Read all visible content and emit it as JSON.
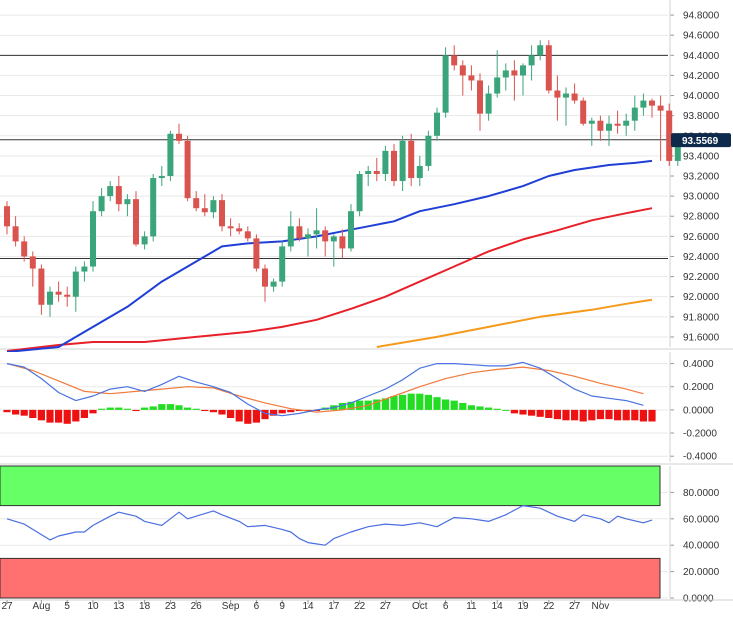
{
  "colors": {
    "background": "#ffffff",
    "grid": "#e9e9e9",
    "axis": "#d0d0d0",
    "candle_up": "#3aa57a",
    "candle_down": "#d9534f",
    "sma_fast": "#1f3fd6",
    "sma_mid": "#e8202a",
    "sma_slow": "#f59a1a",
    "macd_line": "#4a73e0",
    "signal_line": "#f07a3a",
    "hist_pos": "#22dd22",
    "hist_neg": "#ee1111",
    "rsi_line": "#4a6ee0",
    "overbought_zone": "#66ff66",
    "oversold_zone": "#ff7070",
    "last_price_tag": "#0e2a4a"
  },
  "x_axis": {
    "labels": [
      {
        "text": "27",
        "index": 0
      },
      {
        "text": "Aug",
        "index": 4
      },
      {
        "text": "5",
        "index": 7
      },
      {
        "text": "10",
        "index": 10
      },
      {
        "text": "13",
        "index": 13
      },
      {
        "text": "18",
        "index": 16
      },
      {
        "text": "23",
        "index": 19
      },
      {
        "text": "26",
        "index": 22
      },
      {
        "text": "Sep",
        "index": 26
      },
      {
        "text": "6",
        "index": 29
      },
      {
        "text": "9",
        "index": 32
      },
      {
        "text": "14",
        "index": 35
      },
      {
        "text": "17",
        "index": 38
      },
      {
        "text": "22",
        "index": 41
      },
      {
        "text": "27",
        "index": 44
      },
      {
        "text": "Oct",
        "index": 48
      },
      {
        "text": "6",
        "index": 51
      },
      {
        "text": "11",
        "index": 54
      },
      {
        "text": "14",
        "index": 57
      },
      {
        "text": "19",
        "index": 60
      },
      {
        "text": "22",
        "index": 63
      },
      {
        "text": "27",
        "index": 66
      },
      {
        "text": "Nov",
        "index": 69
      }
    ]
  },
  "chart_data": [
    {
      "type": "candlestick",
      "title": "",
      "ylim": [
        91.5,
        94.95
      ],
      "y_ticks": [
        "91.6000",
        "91.8000",
        "92.0000",
        "92.2000",
        "92.4000",
        "92.6000",
        "92.8000",
        "93.0000",
        "93.2000",
        "93.4000",
        "93.6000",
        "93.8000",
        "94.0000",
        "94.2000",
        "94.4000",
        "94.6000",
        "94.8000"
      ],
      "last_price": "93.5569",
      "horizontal_levels": [
        94.4,
        93.56,
        92.38
      ],
      "ohlc": [
        [
          92.9,
          92.95,
          92.62,
          92.7
        ],
        [
          92.7,
          92.8,
          92.5,
          92.55
        ],
        [
          92.55,
          92.6,
          92.35,
          92.4
        ],
        [
          92.4,
          92.45,
          92.1,
          92.28
        ],
        [
          92.28,
          92.32,
          91.82,
          91.92
        ],
        [
          91.92,
          92.1,
          91.8,
          92.05
        ],
        [
          92.05,
          92.15,
          91.95,
          92.02
        ],
        [
          92.02,
          92.1,
          91.9,
          92.0
        ],
        [
          92.0,
          92.3,
          91.85,
          92.25
        ],
        [
          92.25,
          92.35,
          92.15,
          92.3
        ],
        [
          92.3,
          92.95,
          92.25,
          92.85
        ],
        [
          92.85,
          93.08,
          92.8,
          93.0
        ],
        [
          93.0,
          93.15,
          92.95,
          93.1
        ],
        [
          93.1,
          93.2,
          92.85,
          92.92
        ],
        [
          92.92,
          93.02,
          92.8,
          92.97
        ],
        [
          92.97,
          93.05,
          92.5,
          92.52
        ],
        [
          92.52,
          92.65,
          92.47,
          92.6
        ],
        [
          92.6,
          93.22,
          92.55,
          93.18
        ],
        [
          93.18,
          93.3,
          93.1,
          93.2
        ],
        [
          93.2,
          93.65,
          93.15,
          93.62
        ],
        [
          93.62,
          93.72,
          93.52,
          93.55
        ],
        [
          93.55,
          93.6,
          92.95,
          92.98
        ],
        [
          92.98,
          93.05,
          92.85,
          92.88
        ],
        [
          92.88,
          93.02,
          92.8,
          92.84
        ],
        [
          92.84,
          93.0,
          92.78,
          92.96
        ],
        [
          92.96,
          93.02,
          92.65,
          92.7
        ],
        [
          92.7,
          92.78,
          92.6,
          92.68
        ],
        [
          92.68,
          92.73,
          92.62,
          92.65
        ],
        [
          92.65,
          92.7,
          92.55,
          92.58
        ],
        [
          92.58,
          92.62,
          92.25,
          92.28
        ],
        [
          92.28,
          92.32,
          91.95,
          92.1
        ],
        [
          92.1,
          92.18,
          92.05,
          92.15
        ],
        [
          92.15,
          92.55,
          92.1,
          92.5
        ],
        [
          92.5,
          92.85,
          92.45,
          92.7
        ],
        [
          92.7,
          92.78,
          92.55,
          92.58
        ],
        [
          92.58,
          92.68,
          92.4,
          92.62
        ],
        [
          92.62,
          92.88,
          92.48,
          92.66
        ],
        [
          92.66,
          92.7,
          92.4,
          92.55
        ],
        [
          92.55,
          92.62,
          92.3,
          92.6
        ],
        [
          92.6,
          92.67,
          92.38,
          92.48
        ],
        [
          92.48,
          92.92,
          92.45,
          92.85
        ],
        [
          92.85,
          93.25,
          92.8,
          93.22
        ],
        [
          93.22,
          93.3,
          93.1,
          93.25
        ],
        [
          93.25,
          93.38,
          93.15,
          93.22
        ],
        [
          93.22,
          93.5,
          93.15,
          93.45
        ],
        [
          93.45,
          93.52,
          93.1,
          93.15
        ],
        [
          93.15,
          93.6,
          93.05,
          93.55
        ],
        [
          93.55,
          93.62,
          93.1,
          93.18
        ],
        [
          93.18,
          93.4,
          93.1,
          93.3
        ],
        [
          93.3,
          93.65,
          93.25,
          93.6
        ],
        [
          93.6,
          93.88,
          93.55,
          93.83
        ],
        [
          93.83,
          94.48,
          93.78,
          94.4
        ],
        [
          94.4,
          94.5,
          94.25,
          94.3
        ],
        [
          94.3,
          94.35,
          94.0,
          94.2
        ],
        [
          94.2,
          94.3,
          94.05,
          94.15
        ],
        [
          94.15,
          94.22,
          93.65,
          93.82
        ],
        [
          93.82,
          94.1,
          93.75,
          94.02
        ],
        [
          94.02,
          94.45,
          93.98,
          94.18
        ],
        [
          94.18,
          94.32,
          94.05,
          94.25
        ],
        [
          94.25,
          94.35,
          93.95,
          94.2
        ],
        [
          94.2,
          94.32,
          94.0,
          94.3
        ],
        [
          94.3,
          94.5,
          94.15,
          94.4
        ],
        [
          94.4,
          94.55,
          94.35,
          94.5
        ],
        [
          94.5,
          94.55,
          94.02,
          94.05
        ],
        [
          94.05,
          94.2,
          93.75,
          93.98
        ],
        [
          93.98,
          94.08,
          93.7,
          94.02
        ],
        [
          94.02,
          94.12,
          93.92,
          93.95
        ],
        [
          93.95,
          93.98,
          93.7,
          93.72
        ],
        [
          93.72,
          93.78,
          93.5,
          93.75
        ],
        [
          93.75,
          93.8,
          93.55,
          93.65
        ],
        [
          93.65,
          93.8,
          93.5,
          93.72
        ],
        [
          93.72,
          93.85,
          93.62,
          93.7
        ],
        [
          93.7,
          93.82,
          93.6,
          93.75
        ],
        [
          93.75,
          94.0,
          93.65,
          93.88
        ],
        [
          93.88,
          94.02,
          93.8,
          93.95
        ],
        [
          93.95,
          93.97,
          93.78,
          93.9
        ],
        [
          93.9,
          94.0,
          93.35,
          93.85
        ],
        [
          93.85,
          93.92,
          93.3,
          93.35
        ],
        [
          93.35,
          93.62,
          93.3,
          93.56
        ]
      ],
      "sma_fast": [
        [
          0,
          91.45
        ],
        [
          6,
          91.5
        ],
        [
          10,
          91.7
        ],
        [
          14,
          91.9
        ],
        [
          18,
          92.15
        ],
        [
          22,
          92.35
        ],
        [
          25,
          92.5
        ],
        [
          28,
          92.53
        ],
        [
          32,
          92.55
        ],
        [
          36,
          92.6
        ],
        [
          39,
          92.65
        ],
        [
          42,
          92.7
        ],
        [
          45,
          92.75
        ],
        [
          48,
          92.85
        ],
        [
          52,
          92.92
        ],
        [
          56,
          93.0
        ],
        [
          60,
          93.1
        ],
        [
          63,
          93.2
        ],
        [
          66,
          93.26
        ],
        [
          70,
          93.31
        ],
        [
          73,
          93.33
        ],
        [
          75,
          93.35
        ]
      ],
      "sma_mid": [
        [
          0,
          91.46
        ],
        [
          6,
          91.52
        ],
        [
          10,
          91.55
        ],
        [
          16,
          91.55
        ],
        [
          22,
          91.6
        ],
        [
          28,
          91.65
        ],
        [
          32,
          91.7
        ],
        [
          36,
          91.77
        ],
        [
          40,
          91.88
        ],
        [
          44,
          92.0
        ],
        [
          48,
          92.15
        ],
        [
          52,
          92.3
        ],
        [
          56,
          92.45
        ],
        [
          60,
          92.57
        ],
        [
          64,
          92.66
        ],
        [
          68,
          92.76
        ],
        [
          72,
          92.83
        ],
        [
          75,
          92.88
        ]
      ],
      "sma_slow": [
        [
          43,
          91.5
        ],
        [
          50,
          91.6
        ],
        [
          56,
          91.7
        ],
        [
          62,
          91.8
        ],
        [
          68,
          91.87
        ],
        [
          72,
          91.93
        ],
        [
          75,
          91.97
        ]
      ]
    },
    {
      "type": "macd",
      "ylim": [
        -0.45,
        0.5
      ],
      "y_ticks": [
        "-0.4000",
        "-0.2000",
        "0.0000",
        "0.2000",
        "0.4000"
      ],
      "macd": [
        [
          0,
          0.4
        ],
        [
          2,
          0.37
        ],
        [
          4,
          0.27
        ],
        [
          6,
          0.15
        ],
        [
          8,
          0.08
        ],
        [
          10,
          0.12
        ],
        [
          12,
          0.18
        ],
        [
          14,
          0.2
        ],
        [
          16,
          0.16
        ],
        [
          18,
          0.22
        ],
        [
          20,
          0.29
        ],
        [
          22,
          0.24
        ],
        [
          24,
          0.2
        ],
        [
          26,
          0.15
        ],
        [
          28,
          0.05
        ],
        [
          30,
          -0.03
        ],
        [
          32,
          -0.05
        ],
        [
          34,
          -0.03
        ],
        [
          36,
          0.0
        ],
        [
          38,
          0.02
        ],
        [
          40,
          0.06
        ],
        [
          42,
          0.12
        ],
        [
          44,
          0.18
        ],
        [
          46,
          0.26
        ],
        [
          48,
          0.36
        ],
        [
          50,
          0.4
        ],
        [
          52,
          0.4
        ],
        [
          54,
          0.39
        ],
        [
          56,
          0.38
        ],
        [
          58,
          0.38
        ],
        [
          60,
          0.41
        ],
        [
          62,
          0.36
        ],
        [
          64,
          0.27
        ],
        [
          66,
          0.18
        ],
        [
          68,
          0.12
        ],
        [
          70,
          0.1
        ],
        [
          72,
          0.08
        ],
        [
          74,
          0.04
        ]
      ],
      "signal": [
        [
          0,
          0.4
        ],
        [
          3,
          0.34
        ],
        [
          6,
          0.25
        ],
        [
          9,
          0.16
        ],
        [
          12,
          0.14
        ],
        [
          15,
          0.16
        ],
        [
          18,
          0.18
        ],
        [
          21,
          0.2
        ],
        [
          24,
          0.19
        ],
        [
          27,
          0.12
        ],
        [
          30,
          0.06
        ],
        [
          33,
          0.01
        ],
        [
          36,
          -0.02
        ],
        [
          39,
          0.0
        ],
        [
          42,
          0.04
        ],
        [
          45,
          0.12
        ],
        [
          48,
          0.2
        ],
        [
          51,
          0.27
        ],
        [
          54,
          0.32
        ],
        [
          57,
          0.35
        ],
        [
          60,
          0.37
        ],
        [
          63,
          0.34
        ],
        [
          66,
          0.29
        ],
        [
          69,
          0.23
        ],
        [
          72,
          0.18
        ],
        [
          74,
          0.14
        ]
      ],
      "histogram": [
        -0.02,
        -0.04,
        -0.05,
        -0.07,
        -0.09,
        -0.11,
        -0.11,
        -0.12,
        -0.1,
        -0.07,
        -0.03,
        0.01,
        0.02,
        0.02,
        0.01,
        -0.01,
        0.02,
        0.03,
        0.05,
        0.05,
        0.04,
        0.02,
        0.01,
        -0.01,
        -0.02,
        -0.04,
        -0.07,
        -0.1,
        -0.12,
        -0.11,
        -0.08,
        -0.05,
        -0.03,
        -0.02,
        -0.01,
        -0.01,
        -0.01,
        0.02,
        0.04,
        0.06,
        0.07,
        0.08,
        0.08,
        0.09,
        0.1,
        0.12,
        0.13,
        0.14,
        0.14,
        0.13,
        0.11,
        0.09,
        0.08,
        0.06,
        0.04,
        0.03,
        0.02,
        0.01,
        0.0,
        -0.03,
        -0.04,
        -0.05,
        -0.06,
        -0.07,
        -0.08,
        -0.09,
        -0.09,
        -0.1,
        -0.09,
        -0.08,
        -0.08,
        -0.09,
        -0.09,
        -0.09,
        -0.1,
        -0.1
      ]
    },
    {
      "type": "line",
      "ylim": [
        0,
        100
      ],
      "y_ticks": [
        "0.0000",
        "20.0000",
        "40.0000",
        "60.0000",
        "80.0000"
      ],
      "overbought": 70,
      "oversold": 30,
      "rsi": [
        [
          0,
          60
        ],
        [
          2,
          56
        ],
        [
          3,
          52
        ],
        [
          4,
          48
        ],
        [
          5,
          44
        ],
        [
          6,
          47
        ],
        [
          8,
          50
        ],
        [
          9,
          50
        ],
        [
          10,
          55
        ],
        [
          12,
          62
        ],
        [
          13,
          65
        ],
        [
          15,
          62
        ],
        [
          16,
          58
        ],
        [
          18,
          55
        ],
        [
          19,
          60
        ],
        [
          20,
          65
        ],
        [
          21,
          60
        ],
        [
          22,
          62
        ],
        [
          24,
          66
        ],
        [
          25,
          63
        ],
        [
          27,
          58
        ],
        [
          28,
          54
        ],
        [
          30,
          55
        ],
        [
          32,
          52
        ],
        [
          33,
          50
        ],
        [
          34,
          45
        ],
        [
          35,
          42
        ],
        [
          37,
          40
        ],
        [
          38,
          45
        ],
        [
          40,
          50
        ],
        [
          42,
          54
        ],
        [
          44,
          56
        ],
        [
          46,
          55
        ],
        [
          48,
          57
        ],
        [
          50,
          54
        ],
        [
          52,
          61
        ],
        [
          54,
          60
        ],
        [
          56,
          58
        ],
        [
          58,
          63
        ],
        [
          60,
          70
        ],
        [
          62,
          68
        ],
        [
          64,
          62
        ],
        [
          66,
          58
        ],
        [
          67,
          63
        ],
        [
          69,
          60
        ],
        [
          70,
          57
        ],
        [
          71,
          62
        ],
        [
          72,
          60
        ],
        [
          74,
          57
        ],
        [
          75,
          59
        ]
      ]
    }
  ]
}
